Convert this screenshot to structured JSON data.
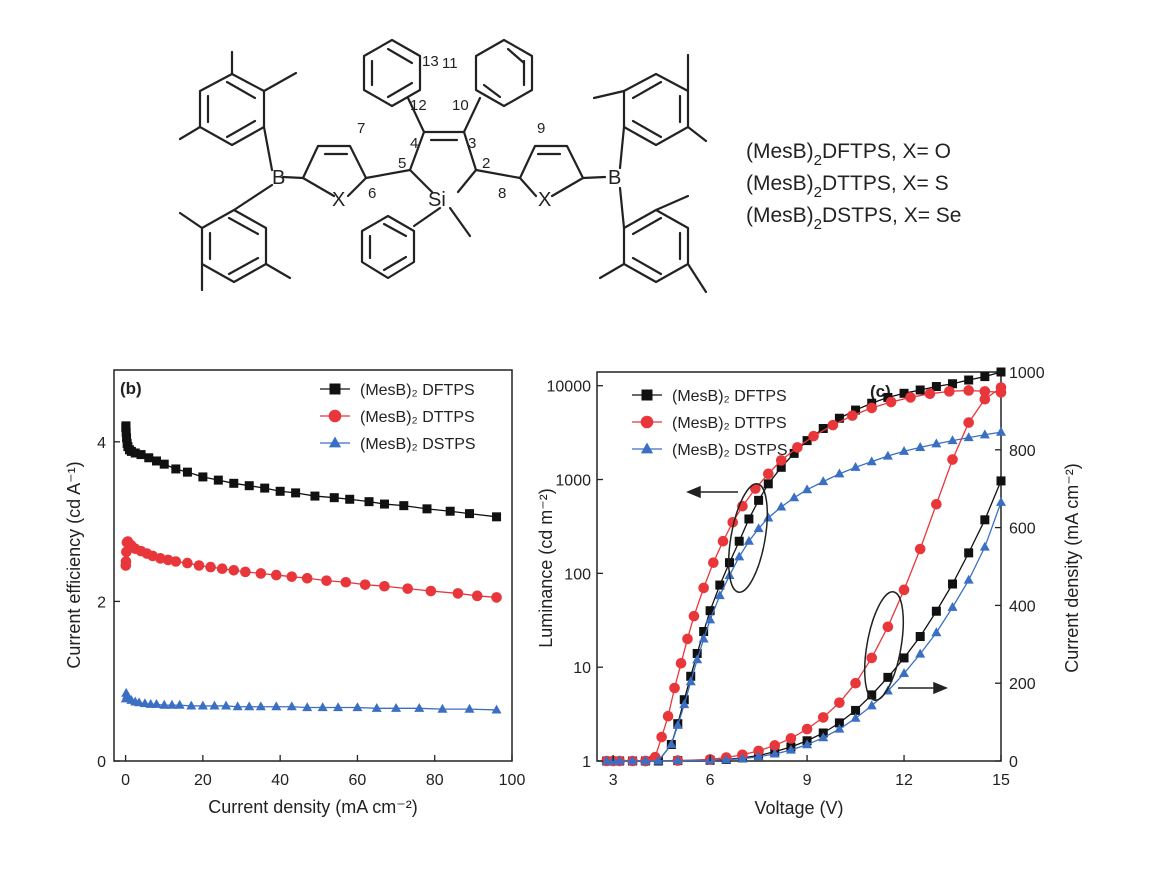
{
  "structure": {
    "numbers": [
      "13",
      "11",
      "12",
      "10",
      "7",
      "4",
      "3",
      "9",
      "5",
      "2",
      "6",
      "8"
    ],
    "atoms": {
      "boron": "B",
      "heteroatom": "X",
      "silicon": "Si"
    },
    "compound_lines": [
      {
        "pre": "(MesB)",
        "sub": "2",
        "post": "DFTPS, X= O"
      },
      {
        "pre": "(MesB)",
        "sub": "2",
        "post": "DTTPS, X= S"
      },
      {
        "pre": "(MesB)",
        "sub": "2",
        "post": "DSTPS, X= Se"
      }
    ]
  },
  "colors": {
    "black": "#111111",
    "red": "#e8363a",
    "blue": "#3a6fc4"
  },
  "chart_data": [
    {
      "type": "scatter",
      "panel_label": "(b)",
      "xlabel": "Current density (mA cm⁻²)",
      "ylabel": "Current efficiency (cd A⁻¹)",
      "xlim": [
        -3,
        100
      ],
      "ylim": [
        0,
        4.9
      ],
      "xticks": [
        "0",
        "20",
        "40",
        "60",
        "80",
        "100"
      ],
      "yticks": [
        "0",
        "2",
        "4"
      ],
      "legend_position": "top-right",
      "series": [
        {
          "name": "(MesB)₂ DFTPS",
          "color": "#111111",
          "marker": "square",
          "x": [
            0.05,
            0.1,
            0.15,
            0.25,
            0.4,
            0.6,
            1.0,
            1.5,
            2.5,
            4,
            6,
            8,
            10,
            13,
            16,
            20,
            24,
            28,
            32,
            36,
            40,
            44,
            49,
            54,
            58,
            63,
            67,
            72,
            78,
            84,
            89,
            96
          ],
          "y": [
            4.18,
            4.2,
            4.12,
            4.05,
            3.98,
            3.94,
            3.9,
            3.88,
            3.86,
            3.84,
            3.8,
            3.76,
            3.72,
            3.66,
            3.62,
            3.56,
            3.52,
            3.48,
            3.45,
            3.42,
            3.38,
            3.36,
            3.32,
            3.3,
            3.28,
            3.25,
            3.22,
            3.2,
            3.16,
            3.13,
            3.1,
            3.06
          ]
        },
        {
          "name": "(MesB)₂ DTTPS",
          "color": "#e8363a",
          "marker": "circle",
          "x": [
            0.05,
            0.1,
            0.2,
            0.35,
            0.6,
            1.0,
            1.5,
            2.5,
            4,
            5.5,
            7,
            9,
            11,
            13,
            16,
            19,
            22,
            25,
            28,
            31,
            35,
            39,
            43,
            47,
            52,
            57,
            62,
            67,
            73,
            79,
            86,
            91,
            96
          ],
          "y": [
            2.45,
            2.5,
            2.62,
            2.74,
            2.75,
            2.72,
            2.7,
            2.66,
            2.63,
            2.6,
            2.57,
            2.54,
            2.52,
            2.5,
            2.48,
            2.45,
            2.43,
            2.41,
            2.39,
            2.37,
            2.35,
            2.33,
            2.31,
            2.29,
            2.26,
            2.24,
            2.21,
            2.19,
            2.16,
            2.13,
            2.1,
            2.07,
            2.05
          ]
        },
        {
          "name": "(MesB)₂ DSTPS",
          "color": "#3a6fc4",
          "marker": "triangle",
          "x": [
            0.05,
            0.15,
            0.4,
            0.8,
            1.5,
            2.5,
            3.5,
            5,
            6.5,
            8,
            10,
            12,
            14,
            17,
            20,
            23,
            26,
            29,
            32,
            35,
            39,
            43,
            47,
            51,
            55,
            60,
            65,
            70,
            76,
            82,
            89,
            96
          ],
          "y": [
            0.78,
            0.85,
            0.82,
            0.79,
            0.76,
            0.74,
            0.73,
            0.72,
            0.71,
            0.71,
            0.7,
            0.7,
            0.7,
            0.69,
            0.69,
            0.69,
            0.69,
            0.68,
            0.68,
            0.68,
            0.68,
            0.68,
            0.67,
            0.67,
            0.67,
            0.67,
            0.66,
            0.66,
            0.66,
            0.65,
            0.65,
            0.64
          ]
        }
      ]
    },
    {
      "type": "scatter",
      "panel_label": "(c)",
      "xlabel": "Voltage (V)",
      "ylabel": "Luminance (cd m⁻²)",
      "ylabel_right": "Current density (mA cm⁻²)",
      "xlim": [
        2.5,
        15
      ],
      "ylim_left_log": [
        1,
        14000
      ],
      "ylim_right": [
        0,
        1000
      ],
      "xticks": [
        "3",
        "6",
        "9",
        "12",
        "15"
      ],
      "yticks_left": [
        "1",
        "10",
        "100",
        "1000",
        "10000"
      ],
      "yticks_right": [
        "0",
        "200",
        "400",
        "600",
        "800",
        "1000"
      ],
      "legend_position": "top-left",
      "series": [
        {
          "name": "(MesB)₂ DFTPS",
          "color": "#111111",
          "marker": "square",
          "luminance": {
            "x": [
              2.8,
              3.2,
              3.6,
              4.0,
              4.4,
              4.8,
              5.0,
              5.2,
              5.4,
              5.6,
              5.8,
              6.0,
              6.3,
              6.6,
              6.9,
              7.2,
              7.5,
              7.8,
              8.2,
              8.6,
              9.0,
              9.5,
              10.0,
              10.5,
              11.0,
              11.5,
              12.0,
              12.5,
              13.0,
              13.5,
              14.0,
              14.5,
              15.0
            ],
            "y": [
              1,
              1,
              1,
              1,
              1,
              1.5,
              2.5,
              4.5,
              8,
              14,
              24,
              40,
              75,
              130,
              220,
              380,
              600,
              900,
              1350,
              1900,
              2600,
              3500,
              4500,
              5500,
              6500,
              7500,
              8300,
              9000,
              9800,
              10500,
              11500,
              12500,
              14000
            ]
          },
          "current": {
            "x": [
              3,
              4,
              5,
              6,
              6.5,
              7,
              7.5,
              8,
              8.5,
              9,
              9.5,
              10,
              10.5,
              11,
              11.5,
              12,
              12.5,
              13,
              13.5,
              14,
              14.5,
              15
            ],
            "y": [
              0,
              0,
              1,
              2,
              4,
              8,
              14,
              24,
              36,
              52,
              72,
              98,
              130,
              170,
              215,
              265,
              320,
              385,
              455,
              535,
              620,
              720
            ]
          }
        },
        {
          "name": "(MesB)₂ DTTPS",
          "color": "#e8363a",
          "marker": "circle",
          "luminance": {
            "x": [
              2.8,
              3.2,
              3.6,
              4.0,
              4.3,
              4.5,
              4.7,
              4.9,
              5.1,
              5.3,
              5.5,
              5.8,
              6.1,
              6.4,
              6.7,
              7.0,
              7.4,
              7.8,
              8.2,
              8.7,
              9.2,
              9.8,
              10.4,
              11.0,
              11.6,
              12.2,
              12.8,
              13.4,
              14.0,
              14.5,
              15.0
            ],
            "y": [
              1,
              1,
              1,
              1,
              1.1,
              1.8,
              3,
              6,
              11,
              20,
              35,
              70,
              130,
              220,
              350,
              520,
              800,
              1150,
              1600,
              2200,
              2900,
              3800,
              4800,
              5800,
              6700,
              7500,
              8200,
              8700,
              8900,
              8700,
              8500
            ]
          },
          "current": {
            "x": [
              3,
              4,
              5,
              6,
              6.5,
              7,
              7.5,
              8,
              8.5,
              9,
              9.5,
              10,
              10.5,
              11,
              11.5,
              12,
              12.5,
              13,
              13.5,
              14,
              14.5,
              15
            ],
            "y": [
              0,
              0,
              1,
              4,
              9,
              16,
              26,
              40,
              58,
              82,
              112,
              150,
              200,
              265,
              345,
              440,
              545,
              660,
              775,
              870,
              930,
              960
            ]
          }
        },
        {
          "name": "(MesB)₂ DSTPS",
          "color": "#3a6fc4",
          "marker": "triangle",
          "luminance": {
            "x": [
              2.8,
              3.2,
              3.6,
              4.0,
              4.4,
              4.8,
              5.0,
              5.2,
              5.4,
              5.6,
              5.8,
              6.0,
              6.3,
              6.6,
              6.9,
              7.2,
              7.5,
              7.8,
              8.2,
              8.6,
              9.0,
              9.5,
              10.0,
              10.5,
              11.0,
              11.5,
              12.0,
              12.5,
              13.0,
              13.5,
              14.0,
              14.5,
              15.0
            ],
            "y": [
              1,
              1,
              1,
              1,
              1,
              1.5,
              2.4,
              4,
              7,
              12,
              20,
              32,
              58,
              95,
              150,
              220,
              300,
              390,
              510,
              640,
              780,
              950,
              1150,
              1350,
              1550,
              1780,
              2000,
              2200,
              2400,
              2600,
              2800,
              3000,
              3200
            ]
          },
          "current": {
            "x": [
              3,
              4,
              5,
              6,
              6.5,
              7,
              7.5,
              8,
              8.5,
              9,
              9.5,
              10,
              10.5,
              11,
              11.5,
              12,
              12.5,
              13,
              13.5,
              14,
              14.5,
              15
            ],
            "y": [
              0,
              0,
              1,
              2,
              3,
              6,
              11,
              18,
              28,
              42,
              60,
              82,
              110,
              142,
              180,
              225,
              275,
              330,
              395,
              465,
              550,
              665
            ]
          }
        }
      ]
    }
  ]
}
